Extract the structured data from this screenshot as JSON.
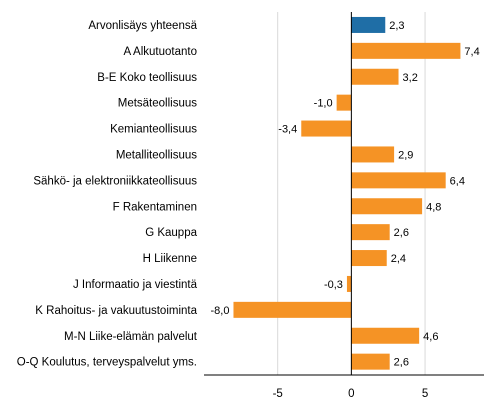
{
  "chart_data": {
    "type": "bar",
    "orientation": "horizontal",
    "categories": [
      "Arvonlisäys yhteensä",
      "A Alkutuotanto",
      "B-E Koko teollisuus",
      "Metsäteollisuus",
      "Kemianteollisuus",
      "Metalliteollisuus",
      "Sähkö- ja elektroniikkateollisuus",
      "F Rakentaminen",
      "G Kauppa",
      "H Liikenne",
      "J Informaatio ja viestintä",
      "K Rahoitus- ja vakuutustoiminta",
      "M-N Liike-elämän palvelut",
      "O-Q Koulutus, terveyspalvelut yms."
    ],
    "values": [
      2.3,
      7.4,
      3.2,
      -1.0,
      -3.4,
      2.9,
      6.4,
      4.8,
      2.6,
      2.4,
      -0.3,
      -8.0,
      4.6,
      2.6
    ],
    "value_labels": [
      "2,3",
      "7,4",
      "3,2",
      "-1,0",
      "-3,4",
      "2,9",
      "6,4",
      "4,8",
      "2,6",
      "2,4",
      "-0,3",
      "-8,0",
      "4,6",
      "2,6"
    ],
    "highlight_index": 0,
    "colors": {
      "highlight": "#1f6ea6",
      "default": "#f59325",
      "grid": "#d9d9d9",
      "axis": "#000000"
    },
    "xlim": [
      -10,
      9
    ],
    "xticks": [
      -5,
      0,
      5
    ],
    "xtick_labels": [
      "-5",
      "0",
      "5"
    ],
    "grid": true,
    "title": "",
    "xlabel": "",
    "ylabel": ""
  }
}
